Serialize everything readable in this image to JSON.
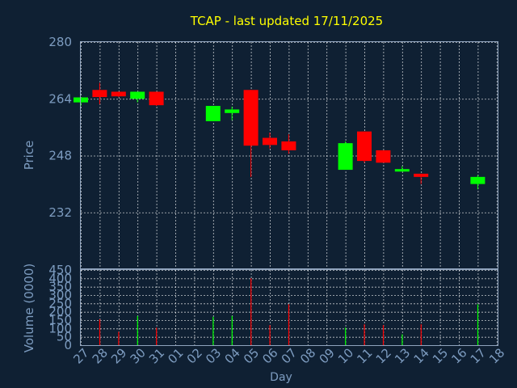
{
  "chart_data": {
    "title": "TCAP - last updated 17/11/2025",
    "type": "candlestick",
    "xlabel": "Day",
    "x_tick_labels": [
      "27",
      "28",
      "29",
      "30",
      "31",
      "01",
      "02",
      "03",
      "04",
      "05",
      "06",
      "07",
      "08",
      "09",
      "10",
      "11",
      "12",
      "13",
      "14",
      "15",
      "16",
      "17",
      "18"
    ],
    "price": {
      "ylabel": "Price",
      "ylim": [
        216,
        280
      ],
      "yticks": [
        232,
        248,
        264,
        280
      ],
      "grid": true,
      "candles": [
        {
          "day": 0,
          "open": 263.0,
          "high": 264.4,
          "low": 262.0,
          "close": 264.4
        },
        {
          "day": 1,
          "open": 266.5,
          "high": 268.5,
          "low": 262.5,
          "close": 264.5
        },
        {
          "day": 2,
          "open": 266.0,
          "high": 266.0,
          "low": 264.5,
          "close": 264.7
        },
        {
          "day": 3,
          "open": 264.0,
          "high": 266.0,
          "low": 263.0,
          "close": 266.0
        },
        {
          "day": 4,
          "open": 266.0,
          "high": 266.0,
          "low": 262.0,
          "close": 262.2
        },
        {
          "day": 7,
          "open": 257.7,
          "high": 262.0,
          "low": 257.7,
          "close": 262.0
        },
        {
          "day": 8,
          "open": 260.0,
          "high": 261.8,
          "low": 258.0,
          "close": 261.0
        },
        {
          "day": 9,
          "open": 266.5,
          "high": 266.5,
          "low": 242.0,
          "close": 250.8
        },
        {
          "day": 10,
          "open": 253.0,
          "high": 254.5,
          "low": 250.0,
          "close": 251.0
        },
        {
          "day": 11,
          "open": 252.0,
          "high": 254.0,
          "low": 248.5,
          "close": 249.5
        },
        {
          "day": 14,
          "open": 244.0,
          "high": 252.0,
          "low": 244.0,
          "close": 251.5
        },
        {
          "day": 15,
          "open": 254.8,
          "high": 254.8,
          "low": 246.0,
          "close": 246.5
        },
        {
          "day": 16,
          "open": 249.5,
          "high": 249.5,
          "low": 246.0,
          "close": 246.0
        },
        {
          "day": 17,
          "open": 243.5,
          "high": 245.0,
          "low": 243.5,
          "close": 244.2
        },
        {
          "day": 18,
          "open": 242.9,
          "high": 242.9,
          "low": 240.0,
          "close": 242.0
        },
        {
          "day": 21,
          "open": 240.0,
          "high": 242.5,
          "low": 238.5,
          "close": 242.0
        }
      ]
    },
    "volume": {
      "ylabel": "Volume (0000)",
      "ylim": [
        0,
        450
      ],
      "yticks": [
        0,
        50,
        100,
        150,
        200,
        250,
        300,
        350,
        400,
        450
      ],
      "bars": [
        {
          "day": 1,
          "value": 155,
          "direction": "down"
        },
        {
          "day": 2,
          "value": 80,
          "direction": "down"
        },
        {
          "day": 3,
          "value": 175,
          "direction": "up"
        },
        {
          "day": 4,
          "value": 105,
          "direction": "down"
        },
        {
          "day": 7,
          "value": 170,
          "direction": "up"
        },
        {
          "day": 8,
          "value": 175,
          "direction": "up"
        },
        {
          "day": 9,
          "value": 400,
          "direction": "down"
        },
        {
          "day": 10,
          "value": 120,
          "direction": "down"
        },
        {
          "day": 11,
          "value": 245,
          "direction": "down"
        },
        {
          "day": 14,
          "value": 105,
          "direction": "up"
        },
        {
          "day": 15,
          "value": 125,
          "direction": "down"
        },
        {
          "day": 16,
          "value": 120,
          "direction": "down"
        },
        {
          "day": 17,
          "value": 65,
          "direction": "up"
        },
        {
          "day": 18,
          "value": 125,
          "direction": "down"
        },
        {
          "day": 21,
          "value": 245,
          "direction": "up"
        }
      ]
    },
    "colors": {
      "background": "#0f2033",
      "title": "#ffff00",
      "axis_text": "#7d9cc0",
      "grid": "#ffffff",
      "frame": "#8fa3bd",
      "up": "#00ff00",
      "down": "#ff0000"
    }
  }
}
